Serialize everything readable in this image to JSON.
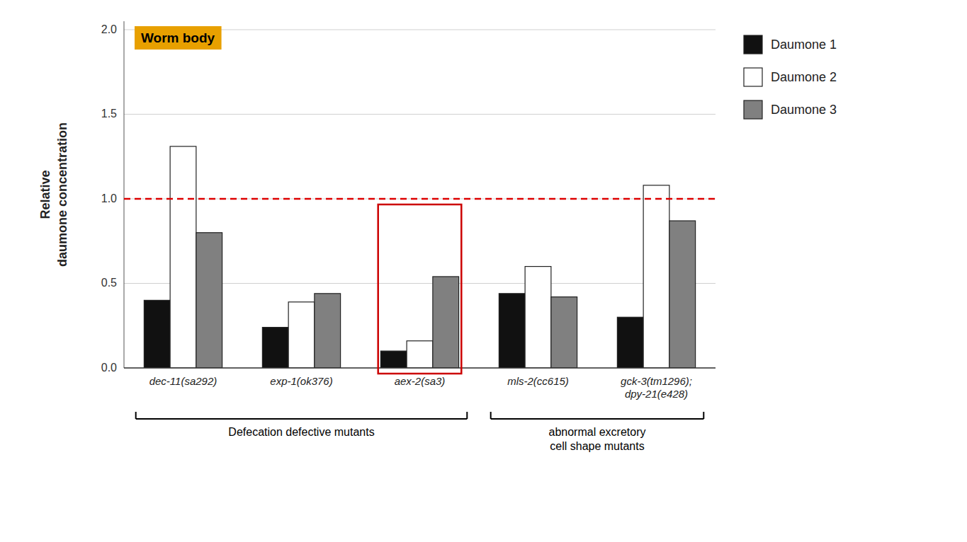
{
  "chart_data": {
    "type": "bar",
    "y_label": "Relative\ndaumone concentration",
    "categories": [
      "dec-11(sa292)",
      "exp-1(ok376)",
      "aex-2(sa3)",
      "mls-2(cc615)",
      "gck-3(tm1296);\ndpy-21(e428)"
    ],
    "series": [
      {
        "name": "Daumone 1",
        "color": "#111111",
        "values": [
          0.4,
          0.24,
          0.1,
          0.44,
          0.3
        ]
      },
      {
        "name": "Daumone 2",
        "color": "#ffffff",
        "values": [
          1.31,
          0.39,
          0.16,
          0.6,
          1.08
        ]
      },
      {
        "name": "Daumone 3",
        "color": "#808080",
        "values": [
          0.8,
          0.44,
          0.54,
          0.42,
          0.87
        ]
      }
    ],
    "ylim": [
      0,
      2.05
    ],
    "yticks": [
      {
        "value": 0,
        "label": "0.0"
      },
      0.5,
      {
        "value": 1.0,
        "label": "1.0"
      },
      1.5,
      {
        "value": 2.0,
        "label": "2.0"
      }
    ],
    "grid": true,
    "legend": "right",
    "annotations": [
      {
        "type": "text_box",
        "text": "Worm body",
        "color": "#e8a000",
        "text_color": "#000000"
      },
      {
        "type": "hline",
        "y": 1.0,
        "color": "#dd0000"
      },
      {
        "type": "highlight",
        "category": 2,
        "color": "#cc0000"
      },
      {
        "type": "bracket",
        "text": "Defecation defective mutants",
        "from_category": 0,
        "to_category": 2
      },
      {
        "type": "bracket",
        "text": "abnormal excretory\ncell shape mutants",
        "from_category": 3,
        "to_category": 4
      }
    ]
  }
}
